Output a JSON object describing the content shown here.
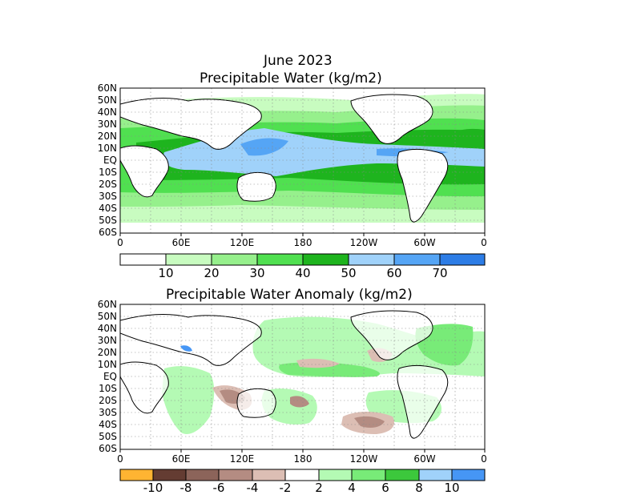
{
  "header": {
    "date": "June 2023",
    "top_title": "Precipitable Water (kg/m2)",
    "bottom_title": "Precipitable Water Anomaly (kg/m2)"
  },
  "lat_labels": [
    "60N",
    "50N",
    "40N",
    "30N",
    "20N",
    "10N",
    "EQ",
    "10S",
    "20S",
    "30S",
    "40S",
    "50S",
    "60S"
  ],
  "lon_labels": [
    "0",
    "60E",
    "120E",
    "180",
    "120W",
    "60W",
    "0"
  ],
  "top_colorbar": {
    "colors": [
      "#ffffff",
      "#c8fcc0",
      "#96f08c",
      "#50e050",
      "#1eb41e",
      "#a0d2fa",
      "#55a5f5",
      "#2d7de6"
    ],
    "labels": [
      "10",
      "20",
      "30",
      "40",
      "50",
      "60",
      "70"
    ]
  },
  "bottom_colorbar": {
    "colors": [
      "#ffb432",
      "#643c32",
      "#8c645a",
      "#b48c82",
      "#dcbeb4",
      "#ffffff",
      "#b4fab4",
      "#78eb78",
      "#3cc83c",
      "#a0d2fa",
      "#4696f5"
    ],
    "labels": [
      "-10",
      "-8",
      "-6",
      "-4",
      "-2",
      "2",
      "4",
      "6",
      "8",
      "10"
    ]
  },
  "colors": {
    "frame": "#000000",
    "grid": "#888888"
  }
}
